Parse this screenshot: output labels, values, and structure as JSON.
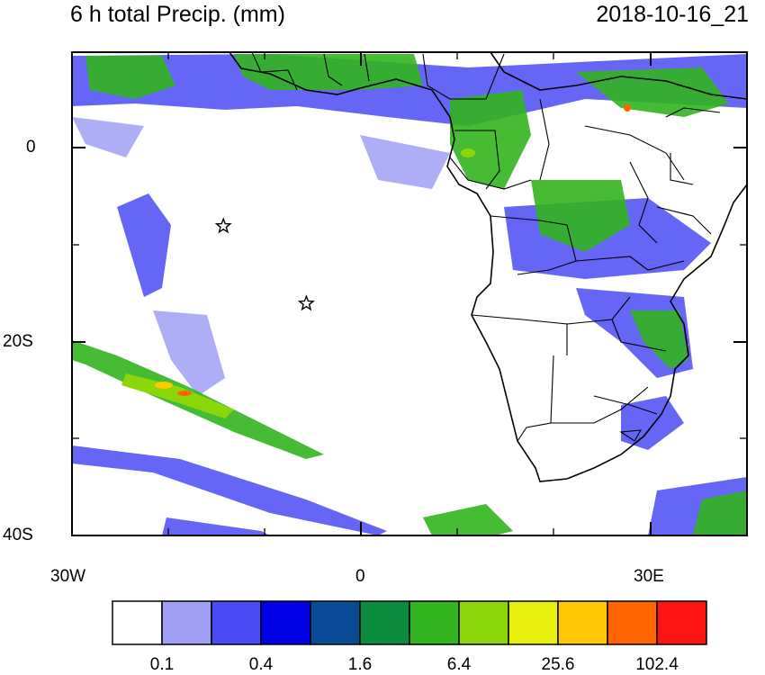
{
  "title": {
    "left": "6 h total Precip. (mm)",
    "right": "2018-10-16_21"
  },
  "map": {
    "y_tick_labels": [
      "0",
      "20S",
      "40S"
    ],
    "x_tick_labels": [
      "30W",
      "0",
      "30E"
    ],
    "markers": [
      {
        "name": "star",
        "lon": -14.3,
        "lat": -8.0
      },
      {
        "name": "star",
        "lon": -5.7,
        "lat": -16.0
      }
    ]
  },
  "colorbar": {
    "colors": [
      "#ffffff",
      "#a0a0f5",
      "#4b4bf5",
      "#0000e6",
      "#0a4b96",
      "#0a8c3c",
      "#32b41e",
      "#8cd70a",
      "#e6f00a",
      "#ffc800",
      "#ff6400",
      "#ff1414"
    ],
    "labels": [
      "0.1",
      "0.4",
      "1.6",
      "6.4",
      "25.6",
      "102.4"
    ]
  }
}
